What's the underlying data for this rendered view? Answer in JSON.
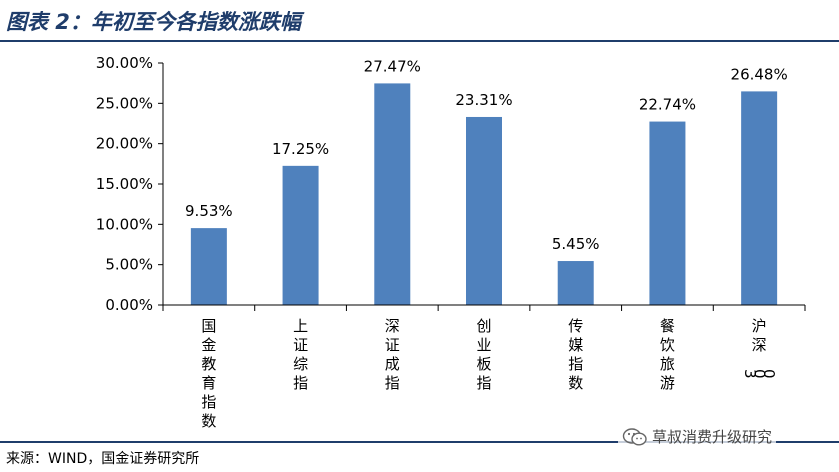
{
  "header": {
    "title": "图表 2：年初至今各指数涨跌幅"
  },
  "footer": {
    "source": "来源：WIND，国金证券研究所"
  },
  "watermark": {
    "text": "草叔消费升级研究",
    "icon": "wechat-icon"
  },
  "colors": {
    "bar": "#4f81bd",
    "axis": "#000000",
    "frame": "#1f3d6b"
  },
  "chart_data": {
    "type": "bar",
    "title": "",
    "xlabel": "",
    "ylabel": "",
    "ylim": [
      0,
      30
    ],
    "yticks": [
      "0.00%",
      "5.00%",
      "10.00%",
      "15.00%",
      "20.00%",
      "25.00%",
      "30.00%"
    ],
    "grid": false,
    "legend": "none",
    "categories": [
      "国金教育指数",
      "上证综指",
      "深证成指",
      "创业板指",
      "传媒指数",
      "餐饮旅游",
      "沪深300"
    ],
    "values": [
      9.53,
      17.25,
      27.47,
      23.31,
      5.45,
      22.74,
      26.48
    ],
    "value_labels": [
      "9.53%",
      "17.25%",
      "27.47%",
      "23.31%",
      "5.45%",
      "22.74%",
      "26.48%"
    ]
  }
}
